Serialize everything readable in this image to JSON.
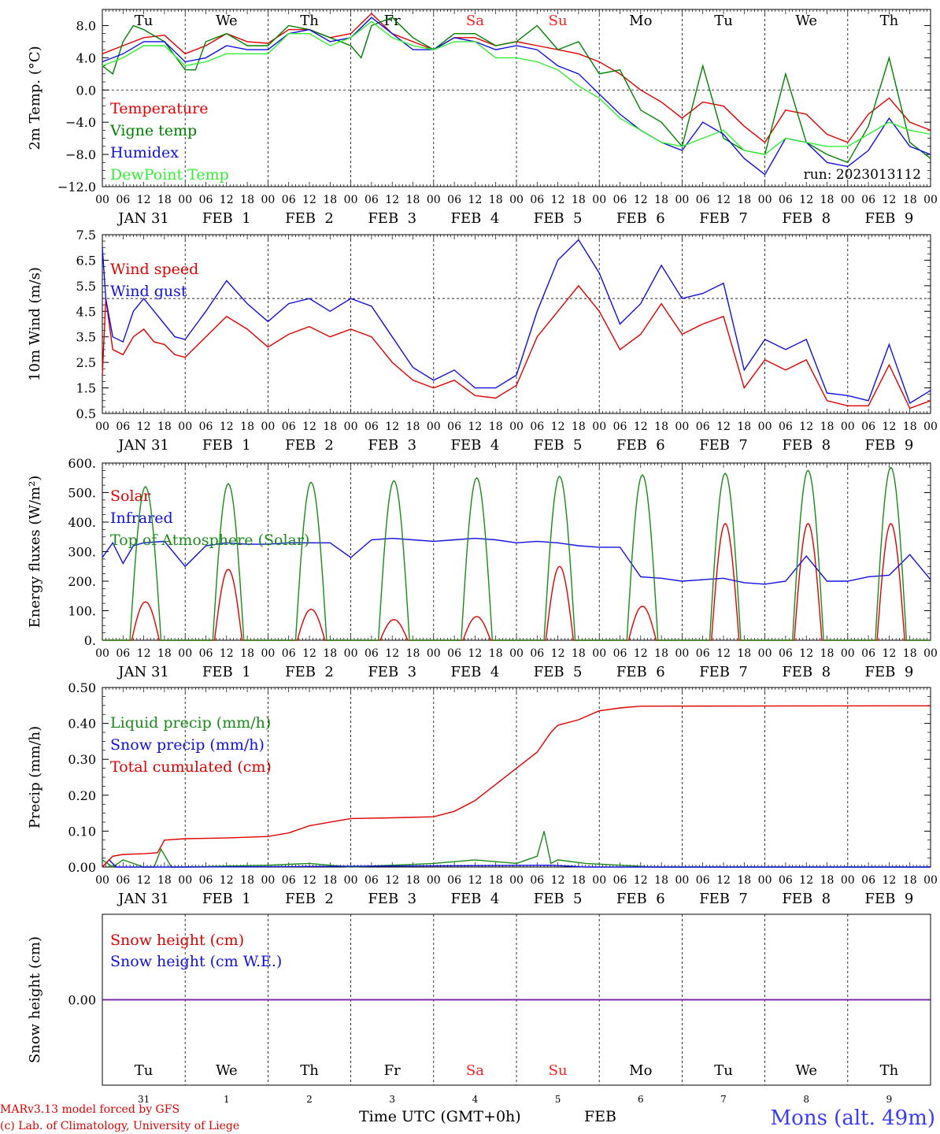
{
  "footer": {
    "credit_line1": "MARv3.13 model forced by GFS",
    "credit_line2": "(c) Lab. of Climatology, University of Liege",
    "time_label": "Time UTC (GMT+0h)",
    "month_label": "FEB",
    "station": "Mons (alt. 49m)"
  },
  "timeline": {
    "hour_labels": [
      "00",
      "06",
      "12",
      "18"
    ],
    "final_hour": "00",
    "date_labels": [
      "JAN 31",
      "FEB  1",
      "FEB  2",
      "FEB  3",
      "FEB  4",
      "FEB  5",
      "FEB  6",
      "FEB  7",
      "FEB  8",
      "FEB  9"
    ],
    "weekdays": [
      "Tu",
      "We",
      "Th",
      "Fr",
      "Sa",
      "Su",
      "Mo",
      "Tu",
      "We",
      "Th"
    ],
    "weekend_color": "#ff2020",
    "weekend_indices": [
      4,
      5
    ],
    "day_numbers": [
      "31",
      "1",
      "2",
      "3",
      "4",
      "5",
      "6",
      "7",
      "8",
      "9"
    ]
  },
  "chart_data": [
    {
      "id": "temperature",
      "type": "line",
      "ylabel": "2m Temp. (°C)",
      "ylim": [
        -12,
        10
      ],
      "yticks": [
        8,
        4,
        0,
        -4,
        -8,
        -12
      ],
      "ytick_labels": [
        "8.0",
        "4.0",
        "0.0",
        "−4.0",
        "−8.0",
        "−12.0"
      ],
      "ref_line": 0,
      "run_label": "run: 2023013112",
      "x_unit": "hours since JAN 31 00 UTC",
      "series": [
        {
          "name": "Temperature",
          "color": "#e00000",
          "x": [
            0,
            6,
            12,
            18,
            24,
            30,
            36,
            42,
            48,
            54,
            60,
            66,
            72,
            78,
            84,
            90,
            96,
            102,
            108,
            114,
            120,
            126,
            132,
            138,
            144,
            150,
            156,
            162,
            168,
            174,
            180,
            186,
            192,
            198,
            204,
            210,
            216,
            222,
            228,
            234,
            240
          ],
          "y": [
            4.5,
            5.5,
            6.5,
            6.8,
            4.5,
            5.5,
            7.0,
            6.0,
            5.8,
            7.5,
            7.5,
            6.5,
            7.0,
            9.5,
            7.0,
            6.0,
            5.0,
            6.5,
            6.5,
            5.5,
            6.0,
            5.5,
            5.0,
            4.5,
            3.5,
            2.0,
            0.0,
            -1.5,
            -3.5,
            -1.5,
            -2.0,
            -4.5,
            -6.5,
            -2.5,
            -3.0,
            -5.5,
            -6.5,
            -3.0,
            -1.0,
            -4.0,
            -5.0
          ]
        },
        {
          "name": "Vigne temp",
          "color": "#008000",
          "x": [
            0,
            3,
            6,
            9,
            12,
            18,
            24,
            27,
            30,
            36,
            42,
            48,
            54,
            60,
            66,
            72,
            75,
            78,
            84,
            90,
            96,
            102,
            108,
            114,
            120,
            126,
            132,
            138,
            144,
            150,
            156,
            162,
            168,
            174,
            180,
            186,
            192,
            198,
            204,
            210,
            216,
            222,
            228,
            234,
            240
          ],
          "y": [
            3.0,
            2.0,
            6.0,
            8.0,
            7.5,
            6.0,
            2.5,
            2.5,
            6.0,
            7.0,
            5.5,
            5.5,
            8.0,
            7.5,
            6.5,
            5.5,
            4.0,
            8.0,
            9.0,
            6.5,
            5.0,
            7.0,
            7.0,
            5.5,
            6.0,
            8.0,
            5.0,
            6.0,
            2.0,
            2.5,
            -2.5,
            -4.0,
            -7.0,
            3.0,
            -6.0,
            -7.5,
            -8.0,
            2.0,
            -6.5,
            -8.0,
            -9.0,
            -4.5,
            4.0,
            -6.5,
            -8.5
          ]
        },
        {
          "name": "Humidex",
          "color": "#1010e0",
          "x": [
            0,
            6,
            12,
            18,
            24,
            30,
            36,
            42,
            48,
            54,
            60,
            66,
            72,
            78,
            84,
            90,
            96,
            102,
            108,
            114,
            120,
            126,
            132,
            138,
            144,
            150,
            156,
            162,
            168,
            174,
            180,
            186,
            192,
            198,
            204,
            210,
            216,
            222,
            228,
            234,
            240
          ],
          "y": [
            3.5,
            4.5,
            6.0,
            6.0,
            3.5,
            4.0,
            5.5,
            5.0,
            5.0,
            7.0,
            7.5,
            6.0,
            6.5,
            9.0,
            7.0,
            5.0,
            5.0,
            6.5,
            6.0,
            5.0,
            5.5,
            5.0,
            3.0,
            2.0,
            -0.5,
            -3.0,
            -5.0,
            -6.5,
            -7.5,
            -4.0,
            -5.5,
            -8.5,
            -10.5,
            -6.0,
            -6.5,
            -9.0,
            -9.5,
            -7.5,
            -3.5,
            -7.0,
            -8.0
          ]
        },
        {
          "name": "DewPoint Temp",
          "color": "#33ee33",
          "x": [
            0,
            6,
            12,
            18,
            24,
            30,
            36,
            42,
            48,
            54,
            60,
            66,
            72,
            78,
            84,
            90,
            96,
            102,
            108,
            114,
            120,
            126,
            132,
            138,
            144,
            150,
            156,
            162,
            168,
            174,
            180,
            186,
            192,
            198,
            204,
            210,
            216,
            222,
            228,
            234,
            240
          ],
          "y": [
            3.0,
            4.0,
            5.5,
            5.5,
            3.0,
            3.5,
            4.5,
            4.5,
            4.5,
            7.0,
            7.0,
            5.5,
            6.5,
            8.5,
            6.5,
            5.5,
            5.0,
            6.0,
            6.0,
            4.0,
            4.0,
            3.5,
            2.5,
            0.5,
            -1.0,
            -3.5,
            -5.0,
            -6.5,
            -7.0,
            -6.0,
            -5.0,
            -7.5,
            -8.0,
            -6.0,
            -6.5,
            -7.0,
            -7.0,
            -5.5,
            -4.0,
            -5.0,
            -5.5
          ]
        }
      ]
    },
    {
      "id": "wind",
      "type": "line",
      "ylabel": "10m Wind (m/s)",
      "ylim": [
        0.5,
        7.5
      ],
      "yticks": [
        7.5,
        6.5,
        5.5,
        4.5,
        3.5,
        2.5,
        1.5,
        0.5
      ],
      "ytick_labels": [
        "7.5",
        "6.5",
        "5.5",
        "4.5",
        "3.5",
        "2.5",
        "1.5",
        "0.5"
      ],
      "ref_line": 5,
      "x_unit": "hours since JAN 31 00 UTC",
      "series": [
        {
          "name": "Wind speed",
          "color": "#e00000",
          "x": [
            0,
            1,
            3,
            6,
            9,
            12,
            15,
            18,
            21,
            24,
            30,
            36,
            42,
            48,
            54,
            60,
            66,
            72,
            78,
            84,
            90,
            96,
            102,
            108,
            114,
            120,
            126,
            132,
            138,
            144,
            150,
            156,
            162,
            168,
            174,
            180,
            186,
            192,
            198,
            204,
            210,
            216,
            222,
            228,
            234,
            240
          ],
          "y": [
            2.0,
            5.0,
            3.0,
            2.8,
            3.5,
            3.8,
            3.3,
            3.2,
            2.8,
            2.7,
            3.5,
            4.3,
            3.8,
            3.1,
            3.6,
            3.9,
            3.5,
            3.8,
            3.5,
            2.5,
            1.8,
            1.5,
            1.8,
            1.2,
            1.1,
            1.6,
            3.5,
            4.5,
            5.5,
            4.5,
            3.0,
            3.6,
            4.8,
            3.6,
            4.0,
            4.3,
            1.5,
            2.6,
            2.2,
            2.6,
            1.0,
            0.8,
            0.8,
            2.4,
            0.7,
            1.0
          ]
        },
        {
          "name": "Wind gust",
          "color": "#1010e0",
          "x": [
            0,
            1,
            3,
            6,
            9,
            12,
            15,
            18,
            21,
            24,
            30,
            36,
            42,
            48,
            54,
            60,
            66,
            72,
            78,
            84,
            90,
            96,
            102,
            108,
            114,
            120,
            126,
            132,
            138,
            144,
            150,
            156,
            162,
            168,
            174,
            180,
            186,
            192,
            198,
            204,
            210,
            216,
            222,
            228,
            234,
            240
          ],
          "y": [
            7.0,
            5.0,
            3.5,
            3.3,
            4.5,
            5.0,
            4.5,
            4.0,
            3.5,
            3.4,
            4.5,
            5.7,
            4.8,
            4.1,
            4.8,
            5.0,
            4.5,
            5.0,
            4.7,
            3.5,
            2.3,
            1.8,
            2.2,
            1.5,
            1.5,
            2.0,
            4.5,
            6.5,
            7.3,
            6.0,
            4.0,
            4.8,
            6.3,
            5.0,
            5.2,
            5.6,
            2.2,
            3.4,
            3.0,
            3.4,
            1.3,
            1.2,
            1.0,
            3.2,
            0.9,
            1.4
          ]
        }
      ]
    },
    {
      "id": "energy",
      "type": "line",
      "ylabel": "Energy fluxes (W/m²)",
      "ylim": [
        0,
        600
      ],
      "yticks": [
        600,
        500,
        400,
        300,
        200,
        100,
        0
      ],
      "ytick_labels": [
        "600.",
        "500.",
        "400.",
        "300.",
        "200.",
        "100.",
        "0."
      ],
      "x_unit": "hours since JAN 31 00 UTC",
      "series": [
        {
          "name": "Solar",
          "color": "#e00000",
          "kind": "daily_bell",
          "day_peaks": [
            130,
            240,
            105,
            70,
            80,
            250,
            115,
            395,
            395,
            395
          ]
        },
        {
          "name": "Infrared",
          "color": "#1010e0",
          "x": [
            0,
            3,
            6,
            9,
            12,
            18,
            24,
            30,
            36,
            42,
            48,
            54,
            60,
            66,
            72,
            78,
            84,
            90,
            96,
            102,
            108,
            114,
            120,
            126,
            132,
            138,
            144,
            150,
            156,
            162,
            168,
            174,
            180,
            186,
            192,
            198,
            204,
            210,
            216,
            222,
            228,
            234,
            240
          ],
          "y": [
            280,
            330,
            260,
            320,
            330,
            335,
            250,
            320,
            330,
            325,
            325,
            330,
            330,
            330,
            280,
            340,
            345,
            340,
            335,
            340,
            345,
            340,
            330,
            335,
            330,
            320,
            315,
            315,
            215,
            210,
            200,
            205,
            210,
            195,
            190,
            200,
            285,
            200,
            200,
            215,
            220,
            290,
            205
          ]
        },
        {
          "name": "Top of Atmosphere (Solar)",
          "color": "#1a8a1a",
          "kind": "daily_bell",
          "day_peaks": [
            520,
            530,
            535,
            540,
            550,
            555,
            560,
            565,
            575,
            585
          ]
        }
      ]
    },
    {
      "id": "precip",
      "type": "line",
      "ylabel": "Precip (mm/h)",
      "ylim": [
        0,
        0.5
      ],
      "yticks": [
        0.5,
        0.4,
        0.3,
        0.2,
        0.1,
        0
      ],
      "ytick_labels": [
        "0.50",
        "0.40",
        "0.30",
        "0.20",
        "0.10",
        "0.00"
      ],
      "x_unit": "hours since JAN 31 00 UTC",
      "series": [
        {
          "name": "Liquid precip (mm/h)",
          "color": "#1a8a1a",
          "x": [
            0,
            3,
            6,
            12,
            15,
            17,
            20,
            24,
            48,
            60,
            72,
            96,
            108,
            114,
            120,
            126,
            128,
            130,
            132,
            140,
            150,
            160,
            240
          ],
          "y": [
            0.02,
            0.0,
            0.02,
            0.0,
            0.0,
            0.05,
            0.0,
            0.0,
            0.005,
            0.01,
            0.0,
            0.01,
            0.02,
            0.015,
            0.01,
            0.03,
            0.1,
            0.01,
            0.02,
            0.01,
            0.005,
            0.0,
            0.0
          ]
        },
        {
          "name": "Snow precip (mm/h)",
          "color": "#1010e0",
          "x": [
            0,
            2,
            4,
            6,
            24,
            130,
            140,
            240
          ],
          "y": [
            0.0,
            0.02,
            0.0,
            0.0,
            0.0,
            0.005,
            0.0,
            0.0
          ]
        },
        {
          "name": "Total cumulated (cm)",
          "color": "#e00000",
          "x": [
            0,
            3,
            6,
            12,
            16,
            18,
            24,
            36,
            48,
            54,
            60,
            72,
            84,
            96,
            102,
            108,
            114,
            120,
            126,
            130,
            132,
            138,
            144,
            150,
            156,
            240
          ],
          "y": [
            0.0,
            0.03,
            0.035,
            0.037,
            0.04,
            0.075,
            0.079,
            0.081,
            0.085,
            0.095,
            0.115,
            0.135,
            0.137,
            0.14,
            0.155,
            0.185,
            0.23,
            0.275,
            0.32,
            0.375,
            0.395,
            0.41,
            0.435,
            0.443,
            0.448,
            0.449
          ]
        }
      ]
    },
    {
      "id": "snow",
      "type": "line",
      "ylabel": "Snow height (cm)",
      "ylim": [
        -1,
        1
      ],
      "yticks": [
        0
      ],
      "ytick_labels": [
        "0.00"
      ],
      "x_unit": "hours since JAN 31 00 UTC",
      "series": [
        {
          "name": "Snow height (cm)",
          "color": "#e00000",
          "x": [
            0,
            240
          ],
          "y": [
            0,
            0
          ]
        },
        {
          "name": "Snow height (cm W.E.)",
          "color": "#1010e0",
          "x": [
            0,
            240
          ],
          "y": [
            0,
            0
          ]
        }
      ]
    }
  ]
}
